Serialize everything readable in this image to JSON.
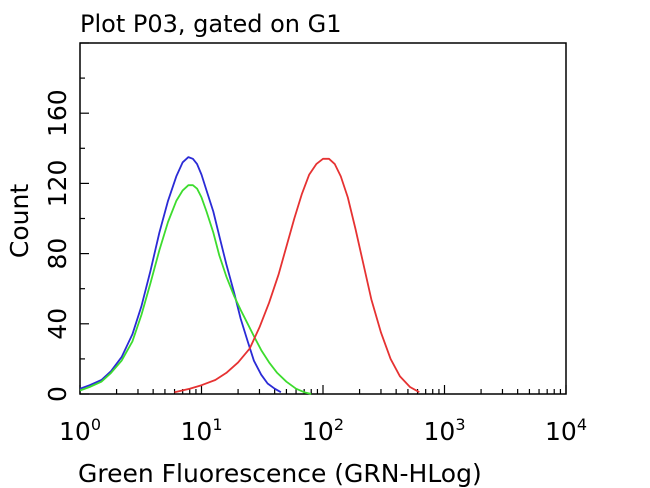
{
  "chart_data": {
    "type": "line",
    "title": "Plot P03, gated on G1",
    "xlabel": "Green Fluorescence (GRN-HLog)",
    "ylabel": "Count",
    "x_scale": "log",
    "xlim": [
      1,
      10000
    ],
    "ylim": [
      0,
      200
    ],
    "x_ticks": [
      {
        "base": "10",
        "exp": "0",
        "value": 1
      },
      {
        "base": "10",
        "exp": "1",
        "value": 10
      },
      {
        "base": "10",
        "exp": "2",
        "value": 100
      },
      {
        "base": "10",
        "exp": "3",
        "value": 1000
      },
      {
        "base": "10",
        "exp": "4",
        "value": 10000
      }
    ],
    "y_ticks": [
      "0",
      "40",
      "80",
      "120",
      "160"
    ],
    "y_tick_values": [
      0,
      40,
      80,
      120,
      160
    ],
    "grid": false,
    "legend": "none",
    "series": [
      {
        "color": "#2b2bd6",
        "x": [
          1.0,
          1.2,
          1.5,
          1.8,
          2.2,
          2.7,
          3.2,
          3.8,
          4.5,
          5.3,
          6.2,
          7.0,
          7.8,
          8.5,
          9.2,
          10.0,
          11,
          12.5,
          14,
          16,
          18.5,
          21,
          24,
          27,
          31,
          35,
          40,
          45
        ],
        "y": [
          3,
          5,
          8,
          13,
          21,
          34,
          50,
          70,
          92,
          110,
          124,
          132,
          135,
          134,
          131,
          125,
          116,
          104,
          90,
          74,
          58,
          43,
          30,
          19,
          11,
          6,
          3,
          1
        ]
      },
      {
        "color": "#3ddc2e",
        "x": [
          1.0,
          1.2,
          1.5,
          1.8,
          2.2,
          2.7,
          3.2,
          3.8,
          4.5,
          5.3,
          6.2,
          7.0,
          7.8,
          8.5,
          9.2,
          10.0,
          11,
          12.5,
          14,
          16,
          18.5,
          21,
          24,
          27,
          31,
          36,
          42,
          50,
          60,
          70,
          80
        ],
        "y": [
          2,
          4,
          7,
          12,
          19,
          30,
          45,
          63,
          82,
          98,
          110,
          116,
          119,
          119,
          117,
          112,
          104,
          92,
          79,
          67,
          56,
          48,
          40,
          33,
          25,
          18,
          12,
          7,
          3,
          1,
          0
        ]
      },
      {
        "color": "#e63232",
        "x": [
          6,
          8,
          10,
          13,
          16,
          20,
          25,
          30,
          36,
          43,
          50,
          58,
          67,
          77,
          88,
          100,
          112,
          125,
          140,
          160,
          185,
          215,
          250,
          300,
          360,
          430,
          520,
          620
        ],
        "y": [
          1,
          3,
          5,
          8,
          12,
          18,
          26,
          38,
          52,
          68,
          84,
          100,
          114,
          125,
          131,
          134,
          134,
          131,
          124,
          112,
          94,
          74,
          54,
          35,
          20,
          10,
          4,
          1
        ]
      }
    ]
  }
}
